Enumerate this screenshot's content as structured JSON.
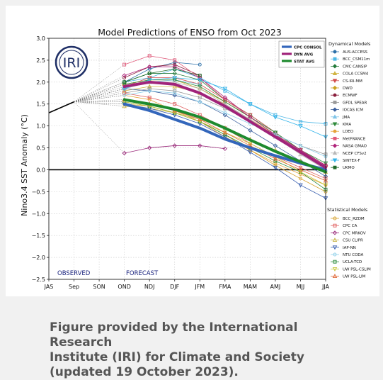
{
  "chart_data": {
    "type": "line",
    "title": "Model Predictions of ENSO from Oct 2023",
    "ylabel": "Nino3.4 SST Anomaly (°C)",
    "xlabel": "",
    "categories": [
      "JAS",
      "Sep",
      "SON",
      "OND",
      "NDJ",
      "DJF",
      "JFM",
      "FMA",
      "MAM",
      "AMJ",
      "MJJ",
      "JJA"
    ],
    "yticks": [
      "3.0",
      "2.5",
      "2.0",
      "1.5",
      "1.0",
      "0.5",
      "0.0",
      "−0.5",
      "−1.0",
      "−1.5",
      "−2.0",
      "−2.5"
    ],
    "ylim": [
      -2.5,
      3.0
    ],
    "grid": true,
    "observed": {
      "label": "OBSERVED",
      "x": [
        0,
        1
      ],
      "y": [
        1.3,
        1.55
      ]
    },
    "forecast_label": "FORECAST",
    "averages": [
      {
        "name": "CPC CONSOL",
        "color": "#3366bb",
        "values": [
          1.5,
          1.35,
          1.15,
          0.95,
          0.7,
          0.5,
          0.32,
          0.15,
          0.0
        ]
      },
      {
        "name": "DYN AVG",
        "color": "#a0237a",
        "values": [
          1.9,
          2.0,
          1.95,
          1.75,
          1.45,
          1.1,
          0.75,
          0.4,
          0.05
        ]
      },
      {
        "name": "STAT AVG",
        "color": "#1e8a2e",
        "values": [
          1.6,
          1.5,
          1.38,
          1.2,
          0.95,
          0.68,
          0.42,
          0.18,
          -0.05
        ]
      }
    ],
    "legend_title_dynamical": "Dynamical Models",
    "legend_title_statistical": "Statistical Models",
    "dynamical": [
      {
        "name": "AUS-ACCESS",
        "color": "#2a6fa8",
        "marker": "circle",
        "values": [
          2.0,
          2.3,
          2.45,
          2.4
        ]
      },
      {
        "name": "BCC_CSM11m",
        "color": "#4fb8e6",
        "marker": "square",
        "values": [
          2.0,
          2.1,
          2.3,
          2.1,
          1.8,
          1.5,
          1.25,
          1.1,
          1.05
        ]
      },
      {
        "name": "CMC CANSIP",
        "color": "#237a3a",
        "marker": "diamond",
        "values": [
          2.0,
          2.2,
          2.2,
          2.05,
          1.6,
          1.25,
          0.85,
          0.45,
          0.1
        ]
      },
      {
        "name": "COLA CCSM4",
        "color": "#d1b441",
        "marker": "triangle",
        "values": [
          1.8,
          1.9,
          1.9,
          1.75,
          1.5,
          1.15,
          0.8,
          0.45,
          0.1
        ]
      },
      {
        "name": "CS-IRI-MM",
        "color": "#d24c4c",
        "marker": "tridown",
        "values": [
          1.9,
          2.1,
          2.1,
          1.95,
          1.6,
          1.25,
          0.85,
          0.45,
          0.05
        ]
      },
      {
        "name": "DWD",
        "color": "#caa11e",
        "marker": "diamond",
        "values": [
          1.95,
          2.05,
          2.05,
          1.85,
          1.55,
          1.2,
          0.8,
          0.4
        ]
      },
      {
        "name": "ECMWF",
        "color": "#8a1e3c",
        "marker": "circle",
        "values": [
          2.1,
          2.35,
          2.4,
          2.15
        ]
      },
      {
        "name": "GFDL SPEAR",
        "color": "#9a9a9a",
        "marker": "square",
        "values": [
          1.75,
          1.85,
          1.8,
          1.65,
          1.4,
          1.1,
          0.8,
          0.55,
          0.35
        ]
      },
      {
        "name": "IOCAS ICM",
        "color": "#3a5f9e",
        "marker": "diamond",
        "values": [
          1.85,
          1.8,
          1.7,
          1.55,
          1.25,
          0.9,
          0.55,
          0.2,
          -0.15
        ]
      },
      {
        "name": "JMA",
        "color": "#7fc4e8",
        "marker": "triangle",
        "values": [
          1.85,
          2.0,
          2.05,
          1.95
        ]
      },
      {
        "name": "KMA",
        "color": "#2e8a3a",
        "marker": "tridown",
        "values": [
          1.95,
          2.05,
          2.05,
          1.9,
          1.55,
          1.2,
          0.85,
          0.45,
          0.15
        ]
      },
      {
        "name": "LDEO",
        "color": "#e6a33a",
        "marker": "circle",
        "values": [
          1.7,
          1.6,
          1.35,
          1.1,
          0.75,
          0.45,
          0.15,
          -0.1,
          -0.35
        ]
      },
      {
        "name": "MetFRANCE",
        "color": "#e05a7a",
        "marker": "square",
        "values": [
          2.4,
          2.6,
          2.5,
          2.1,
          1.6,
          1.2,
          0.8,
          0.45,
          0.1
        ]
      },
      {
        "name": "NASA GMAO",
        "color": "#b0247a",
        "marker": "diamond",
        "values": [
          2.15,
          2.35,
          2.35,
          2.1,
          1.65,
          1.2,
          0.8,
          0.45,
          0.1
        ]
      },
      {
        "name": "NCEP CFSv2",
        "color": "#b8b8b8",
        "marker": "triangle",
        "values": [
          1.85,
          2.0,
          2.0,
          1.85,
          1.5,
          1.15,
          0.75,
          0.35,
          0.0
        ]
      },
      {
        "name": "SINTEX-F",
        "color": "#34b4ea",
        "marker": "tridown",
        "values": [
          1.85,
          2.05,
          2.1,
          2.05,
          1.85,
          1.5,
          1.2,
          1.0,
          0.75
        ]
      },
      {
        "name": "UKMO",
        "color": "#1e6b2a",
        "marker": "square",
        "values": [
          2.0,
          2.2,
          2.3,
          2.15
        ]
      }
    ],
    "statistical": [
      {
        "name": "BCC_RZDM",
        "color": "#d6a02a",
        "marker": "circle",
        "values": [
          1.5,
          1.45,
          1.3,
          1.1,
          0.8,
          0.45,
          0.1,
          -0.2,
          -0.5
        ]
      },
      {
        "name": "CPC CA",
        "color": "#e06060",
        "marker": "square",
        "values": [
          1.75,
          1.65,
          1.5,
          1.25,
          0.95,
          0.6,
          0.3,
          0.05,
          -0.2
        ]
      },
      {
        "name": "CPC MRKOV",
        "color": "#9a2a7a",
        "marker": "diamond",
        "values": [
          0.38,
          0.5,
          0.55,
          0.55,
          0.48
        ]
      },
      {
        "name": "CSU CLIPR",
        "color": "#c8b44a",
        "marker": "triangle",
        "values": [
          1.45,
          1.4,
          1.3,
          1.15,
          0.95,
          0.7,
          0.45,
          0.2,
          -0.05
        ]
      },
      {
        "name": "IAP-NN",
        "color": "#3a60b0",
        "marker": "tridown",
        "values": [
          1.5,
          1.4,
          1.25,
          1.05,
          0.75,
          0.4,
          0.05,
          -0.35,
          -0.65
        ]
      },
      {
        "name": "NTU CODA",
        "color": "#8fd0ea",
        "marker": "circle",
        "values": [
          1.7,
          1.8,
          1.75,
          1.55,
          1.3,
          1.05,
          0.8,
          0.55,
          0.3
        ]
      },
      {
        "name": "UCLA-TCD",
        "color": "#2a8a3a",
        "marker": "square",
        "values": [
          1.55,
          1.45,
          1.3,
          1.1,
          0.8,
          0.5,
          0.2,
          -0.05,
          -0.45
        ]
      },
      {
        "name": "UW PSL-CSLIM",
        "color": "#c8c83a",
        "marker": "tridown",
        "values": [
          1.55,
          1.45,
          1.3,
          1.1,
          0.85,
          0.6,
          0.3,
          -0.05,
          -0.35
        ]
      },
      {
        "name": "UW PSL-LIM",
        "color": "#e06a3a",
        "marker": "triangle",
        "values": [
          1.6,
          1.5,
          1.35,
          1.15,
          0.85,
          0.55,
          0.25,
          0.0,
          -0.25
        ]
      }
    ]
  },
  "logo": {
    "text": "IRI"
  },
  "caption": {
    "line1": "Figure provided by the International Research",
    "line2": "Institute (IRI) for Climate and Society",
    "line3": "(updated 19 October 2023)."
  }
}
